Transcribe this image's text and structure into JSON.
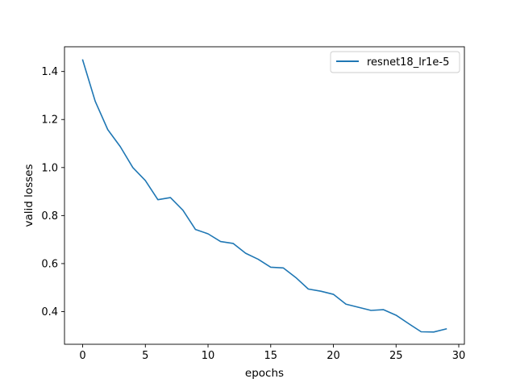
{
  "chart_data": {
    "type": "line",
    "title": "",
    "xlabel": "epochs",
    "ylabel": "valid losses",
    "xlim": [
      -1.45,
      30.45
    ],
    "ylim": [
      0.264,
      1.503
    ],
    "xticks": [
      0,
      5,
      10,
      15,
      20,
      25,
      30
    ],
    "xtick_labels": [
      "0",
      "5",
      "10",
      "15",
      "20",
      "25",
      "30"
    ],
    "yticks": [
      0.4,
      0.6,
      0.8,
      1.0,
      1.2,
      1.4
    ],
    "ytick_labels": [
      "0.4",
      "0.6",
      "0.8",
      "1.0",
      "1.2",
      "1.4"
    ],
    "grid": false,
    "legend_position": "top-right",
    "series": [
      {
        "name": "resnet18_lr1e-5",
        "color": "#1f77b4",
        "x": [
          0,
          1,
          2,
          3,
          4,
          5,
          6,
          7,
          8,
          9,
          10,
          11,
          12,
          13,
          14,
          15,
          16,
          17,
          18,
          19,
          20,
          21,
          22,
          23,
          24,
          25,
          26,
          27,
          28,
          29
        ],
        "y": [
          1.448,
          1.276,
          1.158,
          1.087,
          1.0,
          0.946,
          0.866,
          0.875,
          0.822,
          0.742,
          0.724,
          0.692,
          0.684,
          0.643,
          0.618,
          0.585,
          0.582,
          0.542,
          0.494,
          0.485,
          0.472,
          0.431,
          0.418,
          0.405,
          0.408,
          0.385,
          0.35,
          0.316,
          0.315,
          0.328
        ]
      }
    ]
  }
}
